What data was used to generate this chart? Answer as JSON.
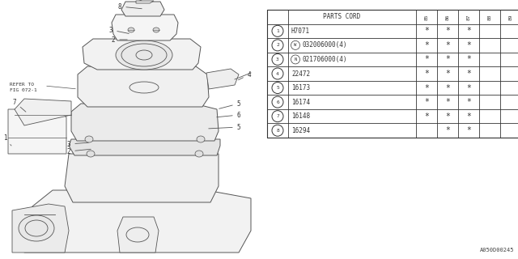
{
  "bg_color": "#ffffff",
  "line_color": "#555555",
  "text_color": "#333333",
  "table_color": "#333333",
  "footnote": "A050D00245",
  "years": [
    "85",
    "86",
    "87",
    "88",
    "89"
  ],
  "rows": [
    {
      "num": "1",
      "code": "H7071",
      "prefix": "",
      "85": "*",
      "86": "*",
      "87": "*",
      "88": "",
      "89": ""
    },
    {
      "num": "2",
      "code": "032006000(4)",
      "prefix": "W",
      "85": "*",
      "86": "*",
      "87": "*",
      "88": "",
      "89": ""
    },
    {
      "num": "3",
      "code": "021706000(4)",
      "prefix": "N",
      "85": "*",
      "86": "*",
      "87": "*",
      "88": "",
      "89": ""
    },
    {
      "num": "4",
      "code": "22472",
      "prefix": "",
      "85": "*",
      "86": "*",
      "87": "*",
      "88": "",
      "89": ""
    },
    {
      "num": "5",
      "code": "16173",
      "prefix": "",
      "85": "*",
      "86": "*",
      "87": "*",
      "88": "",
      "89": ""
    },
    {
      "num": "6",
      "code": "16174",
      "prefix": "",
      "85": "*",
      "86": "*",
      "87": "*",
      "88": "",
      "89": ""
    },
    {
      "num": "7",
      "code": "16148",
      "prefix": "",
      "85": "*",
      "86": "*",
      "87": "*",
      "88": "",
      "89": ""
    },
    {
      "num": "8",
      "code": "16294",
      "prefix": "",
      "85": "",
      "86": "*",
      "87": "*",
      "88": "",
      "89": ""
    }
  ]
}
